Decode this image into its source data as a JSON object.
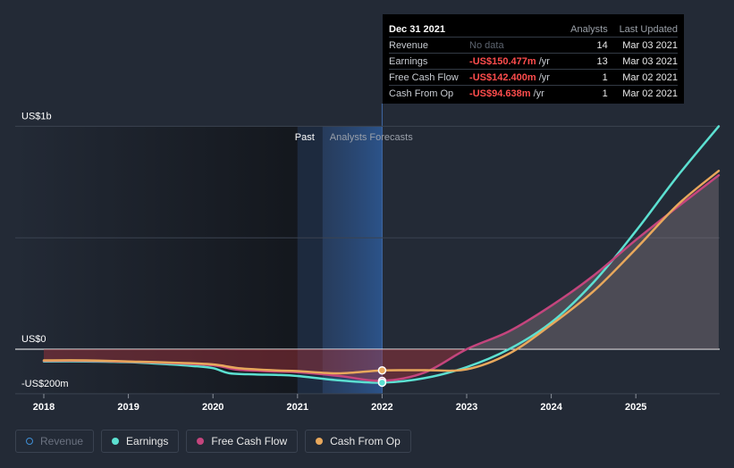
{
  "chart_data": {
    "type": "line",
    "title": "",
    "y_axis_labels": [
      "US$1b",
      "US$0",
      "-US$200m"
    ],
    "x_ticks": [
      "2018",
      "2019",
      "2020",
      "2021",
      "2022",
      "2023",
      "2024",
      "2025"
    ],
    "ylim": [
      -200,
      1000
    ],
    "xlim": [
      2018,
      2025.98
    ],
    "past_label": "Past",
    "forecast_label": "Analysts Forecasts",
    "divider_x": 2021.0,
    "series": [
      {
        "name": "Revenue",
        "color": "#3f8fd6",
        "points": []
      },
      {
        "name": "Earnings",
        "color": "#5ce0d1",
        "points": [
          [
            2018.0,
            -55
          ],
          [
            2018.5,
            -55
          ],
          [
            2019.0,
            -58
          ],
          [
            2019.5,
            -68
          ],
          [
            2019.75,
            -75
          ],
          [
            2020.0,
            -85
          ],
          [
            2020.2,
            -108
          ],
          [
            2020.5,
            -113
          ],
          [
            2020.75,
            -115
          ],
          [
            2021.0,
            -120
          ],
          [
            2021.5,
            -140
          ],
          [
            2022.0,
            -150
          ],
          [
            2022.5,
            -130
          ],
          [
            2023.0,
            -80
          ],
          [
            2023.5,
            0
          ],
          [
            2024.0,
            120
          ],
          [
            2024.5,
            300
          ],
          [
            2025.0,
            530
          ],
          [
            2025.5,
            780
          ],
          [
            2025.98,
            1000
          ]
        ]
      },
      {
        "name": "Free Cash Flow",
        "color": "#c4457d",
        "points": [
          [
            2018.0,
            -52
          ],
          [
            2018.5,
            -52
          ],
          [
            2019.0,
            -56
          ],
          [
            2019.5,
            -62
          ],
          [
            2020.0,
            -72
          ],
          [
            2020.3,
            -92
          ],
          [
            2020.75,
            -100
          ],
          [
            2021.0,
            -103
          ],
          [
            2021.5,
            -120
          ],
          [
            2022.0,
            -142
          ],
          [
            2022.5,
            -105
          ],
          [
            2023.0,
            0
          ],
          [
            2023.5,
            80
          ],
          [
            2024.0,
            195
          ],
          [
            2024.5,
            330
          ],
          [
            2025.0,
            490
          ],
          [
            2025.5,
            640
          ],
          [
            2025.98,
            780
          ]
        ]
      },
      {
        "name": "Cash From Op",
        "color": "#e8a85c",
        "points": [
          [
            2018.0,
            -50
          ],
          [
            2018.5,
            -50
          ],
          [
            2019.0,
            -55
          ],
          [
            2019.5,
            -60
          ],
          [
            2020.0,
            -68
          ],
          [
            2020.3,
            -85
          ],
          [
            2020.75,
            -95
          ],
          [
            2021.0,
            -98
          ],
          [
            2021.5,
            -108
          ],
          [
            2022.0,
            -95
          ],
          [
            2022.5,
            -94
          ],
          [
            2023.0,
            -90
          ],
          [
            2023.5,
            -20
          ],
          [
            2024.0,
            110
          ],
          [
            2024.5,
            260
          ],
          [
            2025.0,
            450
          ],
          [
            2025.5,
            650
          ],
          [
            2025.98,
            800
          ]
        ]
      }
    ],
    "markers": [
      {
        "series": "Cash From Op",
        "x": 2022.0,
        "y": -95
      },
      {
        "series": "Free Cash Flow",
        "x": 2022.0,
        "y": -142
      },
      {
        "series": "Earnings",
        "x": 2022.0,
        "y": -150
      }
    ]
  },
  "tooltip": {
    "date": "Dec 31 2021",
    "col_analysts": "Analysts",
    "col_updated": "Last Updated",
    "rows": [
      {
        "label": "Revenue",
        "value": "No data",
        "unit": "",
        "analysts": "14",
        "updated": "Mar 03 2021"
      },
      {
        "label": "Earnings",
        "value": "-US$150.477m",
        "unit": "/yr",
        "analysts": "13",
        "updated": "Mar 03 2021"
      },
      {
        "label": "Free Cash Flow",
        "value": "-US$142.400m",
        "unit": "/yr",
        "analysts": "1",
        "updated": "Mar 02 2021"
      },
      {
        "label": "Cash From Op",
        "value": "-US$94.638m",
        "unit": "/yr",
        "analysts": "1",
        "updated": "Mar 02 2021"
      }
    ]
  },
  "legend": [
    {
      "label": "Revenue",
      "color": "#3f8fd6",
      "active": false
    },
    {
      "label": "Earnings",
      "color": "#5ce0d1",
      "active": true
    },
    {
      "label": "Free Cash Flow",
      "color": "#c4457d",
      "active": true
    },
    {
      "label": "Cash From Op",
      "color": "#e8a85c",
      "active": true
    }
  ]
}
